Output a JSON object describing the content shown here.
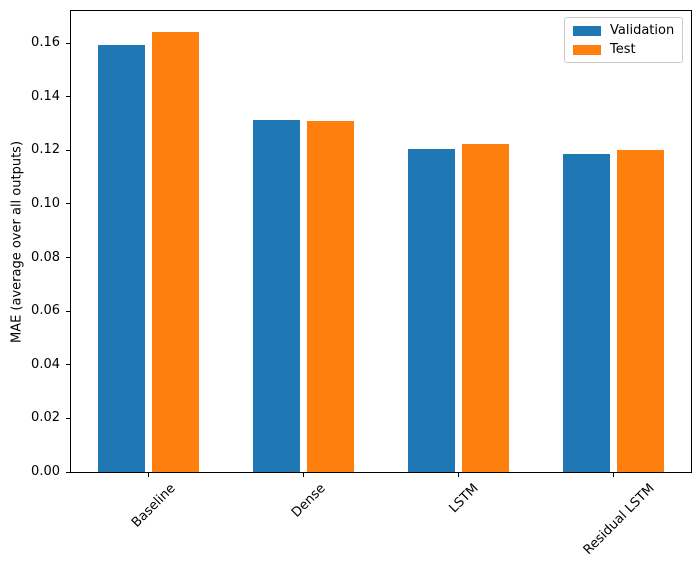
{
  "background": "#ffffff",
  "axes": {
    "spine_color": "#000000",
    "tick_color": "#000000",
    "text_color": "#000000",
    "legend_border_color": "#cccccc"
  },
  "chart_data": {
    "type": "bar",
    "title": "",
    "xlabel": "",
    "ylabel": "MAE (average over all outputs)",
    "categories": [
      "Baseline",
      "Dense",
      "LSTM",
      "Residual LSTM"
    ],
    "series": [
      {
        "name": "Validation",
        "color": "#1f77b4",
        "values": [
          0.1593,
          0.1313,
          0.1204,
          0.1187
        ]
      },
      {
        "name": "Test",
        "color": "#ff7f0e",
        "values": [
          0.1643,
          0.1311,
          0.1223,
          0.12
        ]
      }
    ],
    "ylim": [
      0,
      0.172
    ],
    "ytick_labels": [
      "0.00",
      "0.02",
      "0.04",
      "0.06",
      "0.08",
      "0.10",
      "0.12",
      "0.14",
      "0.16"
    ],
    "bar_width": 0.3,
    "bar_offset": 0.175,
    "x_label_rotation_deg": 45,
    "grid": false,
    "legend": {
      "position": "upper right"
    }
  }
}
